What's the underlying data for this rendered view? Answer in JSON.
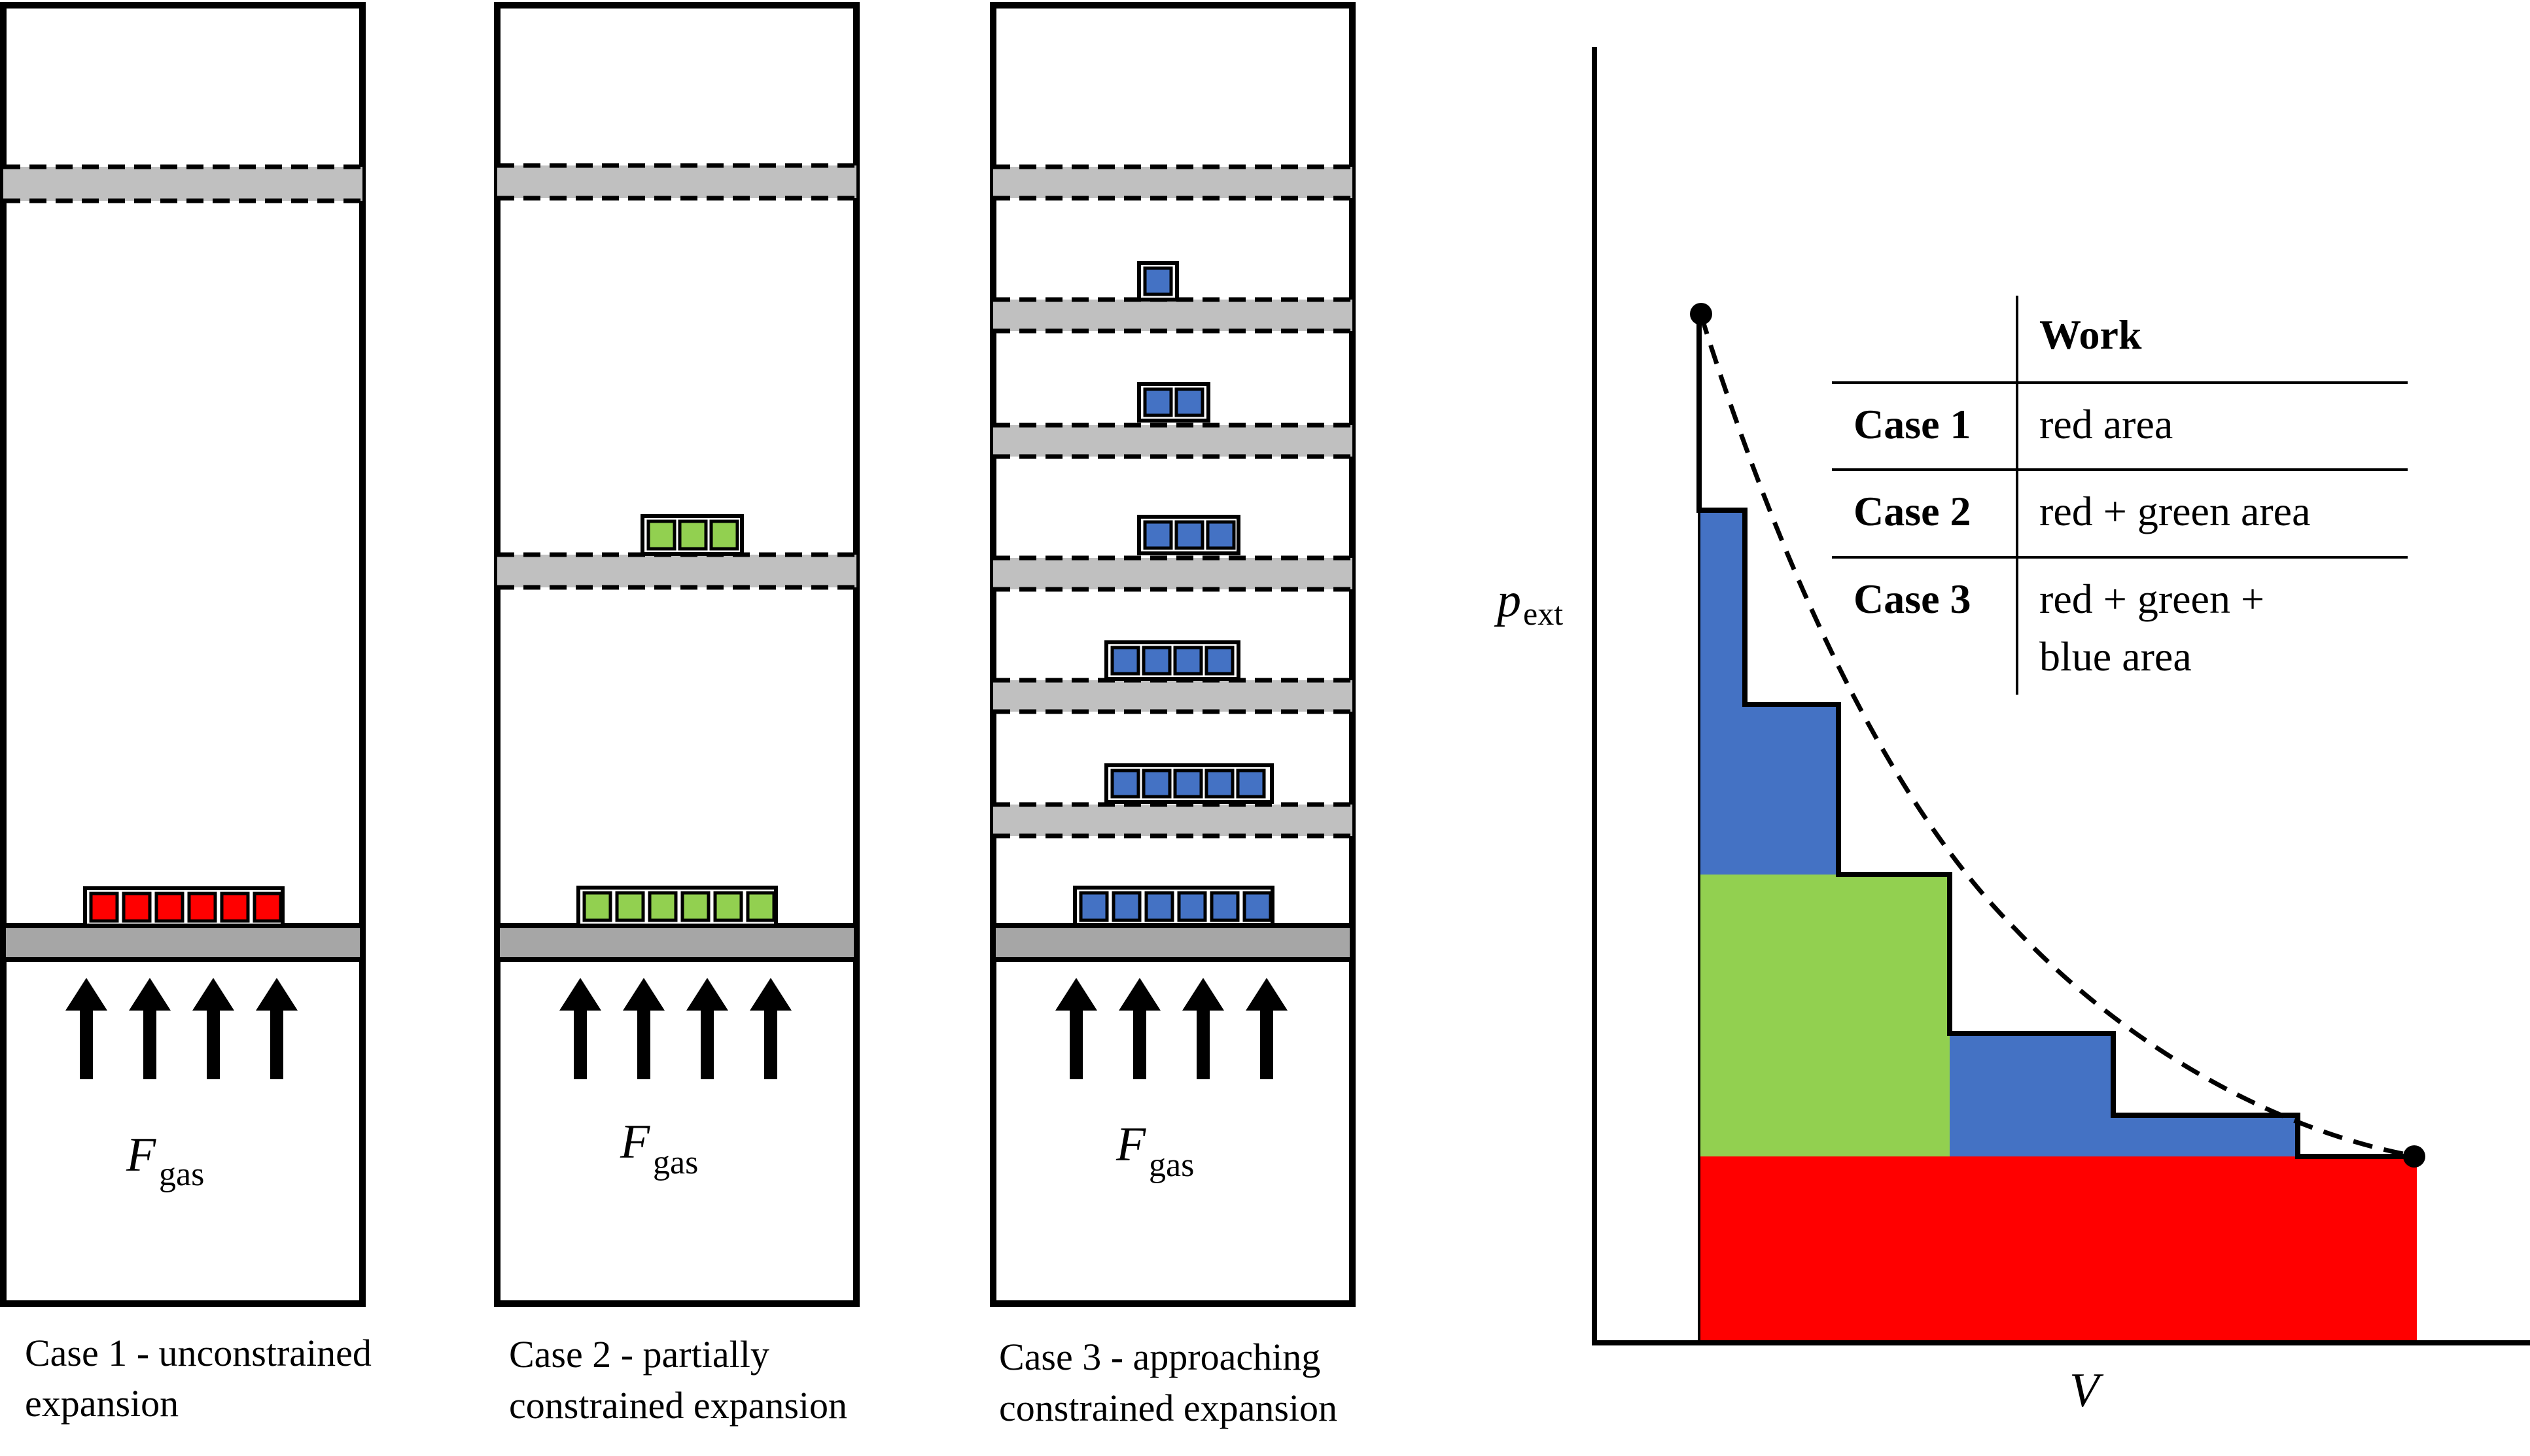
{
  "cylinders": [
    {
      "force_label": "F",
      "force_subscript": "gas",
      "caption_line1": "Case 1 - unconstrained",
      "caption_line2": "expansion"
    },
    {
      "force_label": "F",
      "force_subscript": "gas",
      "caption_line1": "Case 2 - partially",
      "caption_line2": "constrained expansion"
    },
    {
      "force_label": "F",
      "force_subscript": "gas",
      "caption_line1": "Case 3 - approaching",
      "caption_line2": "constrained expansion"
    }
  ],
  "colors": {
    "red": "#FF0000",
    "green": "#92D050",
    "blue": "#4472C4",
    "piston_gray": "#A6A6A6",
    "dashed_piston_gray": "#C0C0C0"
  },
  "graph": {
    "y_axis_label": "p",
    "y_axis_subscript": "ext",
    "x_axis_label": "V"
  },
  "table": {
    "header": [
      "",
      "Work"
    ],
    "rows": [
      {
        "case": "Case 1",
        "work": "red area"
      },
      {
        "case": "Case 2",
        "work": "red + green area"
      },
      {
        "case": "Case 3",
        "work_line1": "red + green +",
        "work_line2": "blue area"
      }
    ]
  }
}
